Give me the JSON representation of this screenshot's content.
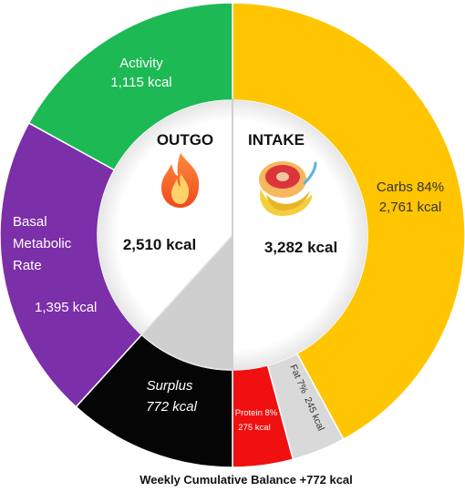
{
  "chart_data": {
    "type": "pie",
    "caption": "Weekly Cumulative Balance +772 kcal",
    "outgo": {
      "title": "OUTGO",
      "total_label": "2,510 kcal",
      "total": 2510,
      "icon": "fire-icon",
      "segments": [
        {
          "key": "activity",
          "name": "Activity",
          "value_label": "1,115 kcal",
          "value": 1115,
          "color": "#1DB954"
        },
        {
          "key": "bmr",
          "name": "Basal Metabolic Rate",
          "name_lines": [
            "Basal",
            "Metabolic",
            "Rate"
          ],
          "value_label": "1,395 kcal",
          "value": 1395,
          "color": "#7B2FA8"
        },
        {
          "key": "surplus",
          "name": "Surplus",
          "value_label": "772 kcal",
          "value": 772,
          "color": "#050505"
        }
      ]
    },
    "intake": {
      "title": "INTAKE",
      "total_label": "3,282 kcal",
      "total": 3282,
      "icon": "food-icon",
      "segments": [
        {
          "key": "carbs",
          "name": "Carbs 84%",
          "value_label": "2,761 kcal",
          "value": 2761,
          "color": "#FFC500"
        },
        {
          "key": "fat",
          "name": "Fat 7%",
          "value_label": "245 kcal",
          "value": 245,
          "color": "#D9D9D9"
        },
        {
          "key": "protein",
          "name": "Protein 8%",
          "value_label": "275 kcal",
          "value": 275,
          "color": "#F01010"
        }
      ]
    }
  }
}
